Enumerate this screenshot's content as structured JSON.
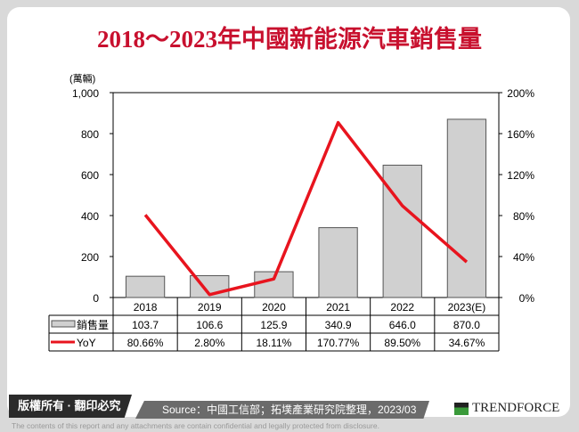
{
  "title": "2018～2023年中國新能源汽車銷售量",
  "chart_data": {
    "type": "bar+line",
    "title": "2018～2023年中國新能源汽車銷售量",
    "categories": [
      "2018",
      "2019",
      "2020",
      "2021",
      "2022",
      "2023(E)"
    ],
    "y_left": {
      "label": "(萬輛)",
      "range": [
        0,
        1000
      ],
      "ticks": [
        "0",
        "200",
        "400",
        "600",
        "800",
        "1,000"
      ]
    },
    "y_right": {
      "range": [
        0,
        200
      ],
      "ticks": [
        "0%",
        "40%",
        "80%",
        "120%",
        "160%",
        "200%"
      ]
    },
    "series": [
      {
        "name": "銷售量",
        "type": "bar",
        "color": "#d0d0d0",
        "values": [
          103.7,
          106.6,
          125.9,
          340.9,
          646.0,
          870.0
        ],
        "labels": [
          "103.7",
          "106.6",
          "125.9",
          "340.9",
          "646.0",
          "870.0"
        ]
      },
      {
        "name": "YoY",
        "type": "line",
        "axis": "right",
        "color": "#e8141e",
        "values": [
          80.66,
          2.8,
          18.11,
          170.77,
          89.5,
          34.67
        ],
        "labels": [
          "80.66%",
          "2.80%",
          "18.11%",
          "170.77%",
          "89.50%",
          "34.67%"
        ]
      }
    ]
  },
  "footer": {
    "copyright": "版權所有 · 翻印必究",
    "source": "Source：中國工信部；拓墣產業研究院整理，2023/03",
    "logo": "TRENDFORCE",
    "disclaimer": "The contents of this report and any attachments are contain confidential and legally protected from disclosure."
  }
}
